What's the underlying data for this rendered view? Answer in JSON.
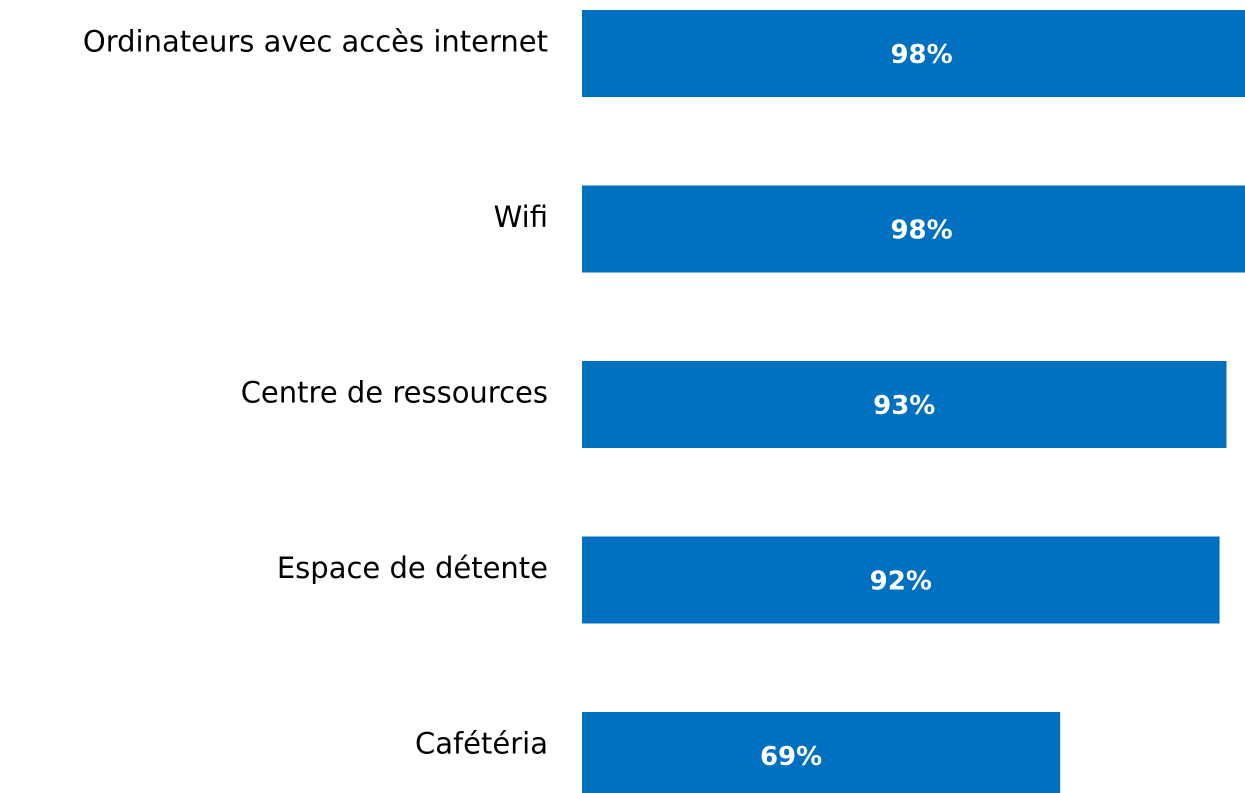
{
  "chart_data": {
    "type": "barh",
    "categories": [
      "Ordinateurs avec accès internet",
      "Wifi",
      "Centre de ressources",
      "Espace de détente",
      "Cafétéria"
    ],
    "values": [
      98,
      98,
      93,
      92,
      69
    ],
    "value_labels": [
      "98%",
      "98%",
      "93%",
      "92%",
      "69%"
    ],
    "color": "#0070c0",
    "xlim": [
      0,
      100
    ]
  }
}
